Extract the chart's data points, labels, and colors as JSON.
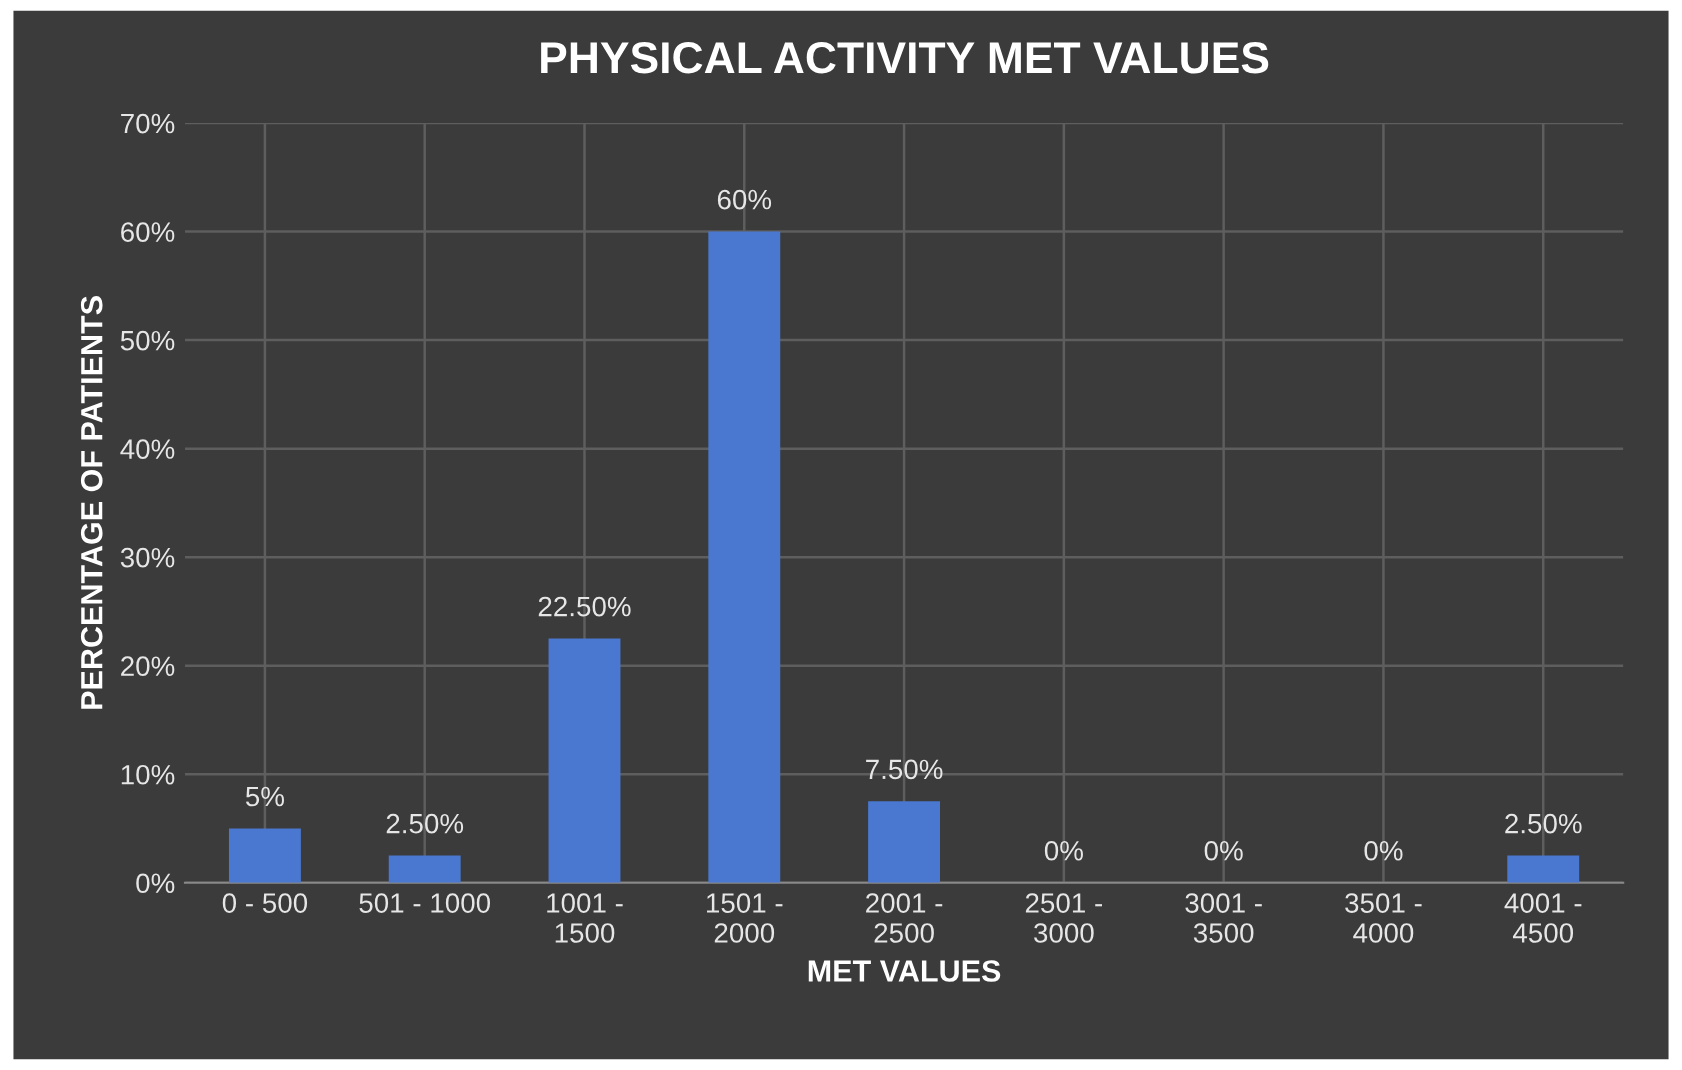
{
  "chart_data": {
    "type": "bar",
    "title": "PHYSICAL ACTIVITY MET VALUES",
    "xlabel": "MET VALUES",
    "ylabel": "PERCENTAGE OF PATIENTS",
    "categories": [
      "0 - 500",
      "501 - 1000",
      "1001 -\n1500",
      "1501 -\n2000",
      "2001 -\n2500",
      "2501 -\n3000",
      "3001 -\n3500",
      "3501 -\n4000",
      "4001 -\n4500"
    ],
    "values": [
      5,
      2.5,
      22.5,
      60,
      7.5,
      0,
      0,
      0,
      2.5
    ],
    "value_labels": [
      "5%",
      "2.50%",
      "22.50%",
      "60%",
      "7.50%",
      "0%",
      "0%",
      "0%",
      "2.50%"
    ],
    "color": "#4a78d0",
    "ylim": [
      0,
      70
    ],
    "yticks": [
      {
        "value": 0,
        "label": "0%"
      },
      {
        "value": 10,
        "label": "10%"
      },
      {
        "value": 20,
        "label": "20%"
      },
      {
        "value": 30,
        "label": "30%"
      },
      {
        "value": 40,
        "label": "40%"
      },
      {
        "value": 50,
        "label": "50%"
      },
      {
        "value": 60,
        "label": "60%"
      },
      {
        "value": 70,
        "label": "70%"
      }
    ],
    "grid": true
  }
}
